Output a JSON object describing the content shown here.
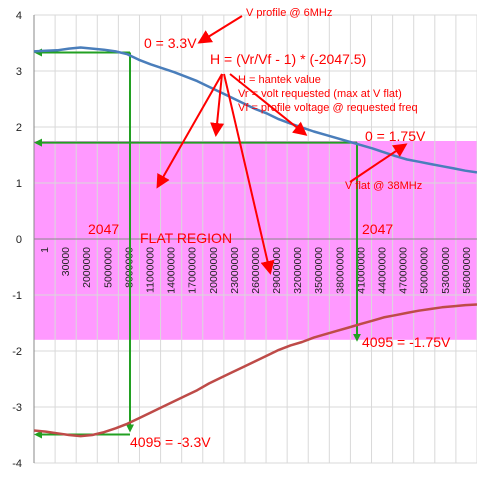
{
  "chart_data": {
    "type": "line",
    "ylim": [
      -4,
      4
    ],
    "y_ticks": [
      "4",
      "3",
      "2",
      "1",
      "0",
      "-1",
      "-2",
      "-3",
      "-4"
    ],
    "x_tick_labels": [
      "1",
      "30000",
      "2000000",
      "5000000",
      "8000000",
      "11000000",
      "14000000",
      "17000000",
      "20000000",
      "23000000",
      "26000000",
      "29000000",
      "32000000",
      "35000000",
      "38000000",
      "41000000",
      "44000000",
      "47000000",
      "50000000",
      "53000000",
      "56000000"
    ],
    "grid": true,
    "series": [
      {
        "color": "#4a7ebb",
        "values": [
          3.35,
          3.36,
          3.37,
          3.4,
          3.42,
          3.4,
          3.38,
          3.35,
          3.3,
          3.2,
          3.12,
          3.05,
          2.98,
          2.9,
          2.82,
          2.72,
          2.62,
          2.52,
          2.42,
          2.32,
          2.24,
          2.14,
          2.06,
          1.99,
          1.92,
          1.86,
          1.8,
          1.74,
          1.68,
          1.62,
          1.55,
          1.48,
          1.42,
          1.38,
          1.34,
          1.3,
          1.26,
          1.22,
          1.19
        ]
      },
      {
        "color": "#be4b48",
        "values": [
          -3.42,
          -3.44,
          -3.47,
          -3.5,
          -3.52,
          -3.5,
          -3.45,
          -3.38,
          -3.3,
          -3.2,
          -3.1,
          -3.0,
          -2.9,
          -2.8,
          -2.7,
          -2.58,
          -2.48,
          -2.38,
          -2.28,
          -2.18,
          -2.08,
          -1.98,
          -1.9,
          -1.84,
          -1.76,
          -1.7,
          -1.64,
          -1.58,
          -1.52,
          -1.46,
          -1.4,
          -1.36,
          -1.32,
          -1.28,
          -1.25,
          -1.22,
          -1.2,
          -1.18,
          -1.17
        ]
      }
    ],
    "flat_region": {
      "y_top": 1.75,
      "y_bottom": -1.8,
      "label": "FLAT REGION",
      "color": "#ff99ff"
    },
    "markers": {
      "left_level": 3.33,
      "right_level": 1.72,
      "left_low": -3.42,
      "right_low": -1.8
    },
    "annotations": {
      "v_profile": "V profile @ 6MHz",
      "zero_33": "0  = 3.3V",
      "formula": "H = (Vr/Vf - 1) * (-2047.5)",
      "def_h": "H = hantek value",
      "def_vr": "Vr = volt requested (max at V flat)",
      "def_vf": "Vf = profile voltage @ requested freq",
      "zero_175": "0  = 1.75V",
      "v_flat": "V flat @ 38MHz",
      "left_2047": "2047",
      "right_2047": "2047",
      "right_4095": "4095 = -1.75V",
      "left_4095": "4095 = -3.3V"
    }
  }
}
